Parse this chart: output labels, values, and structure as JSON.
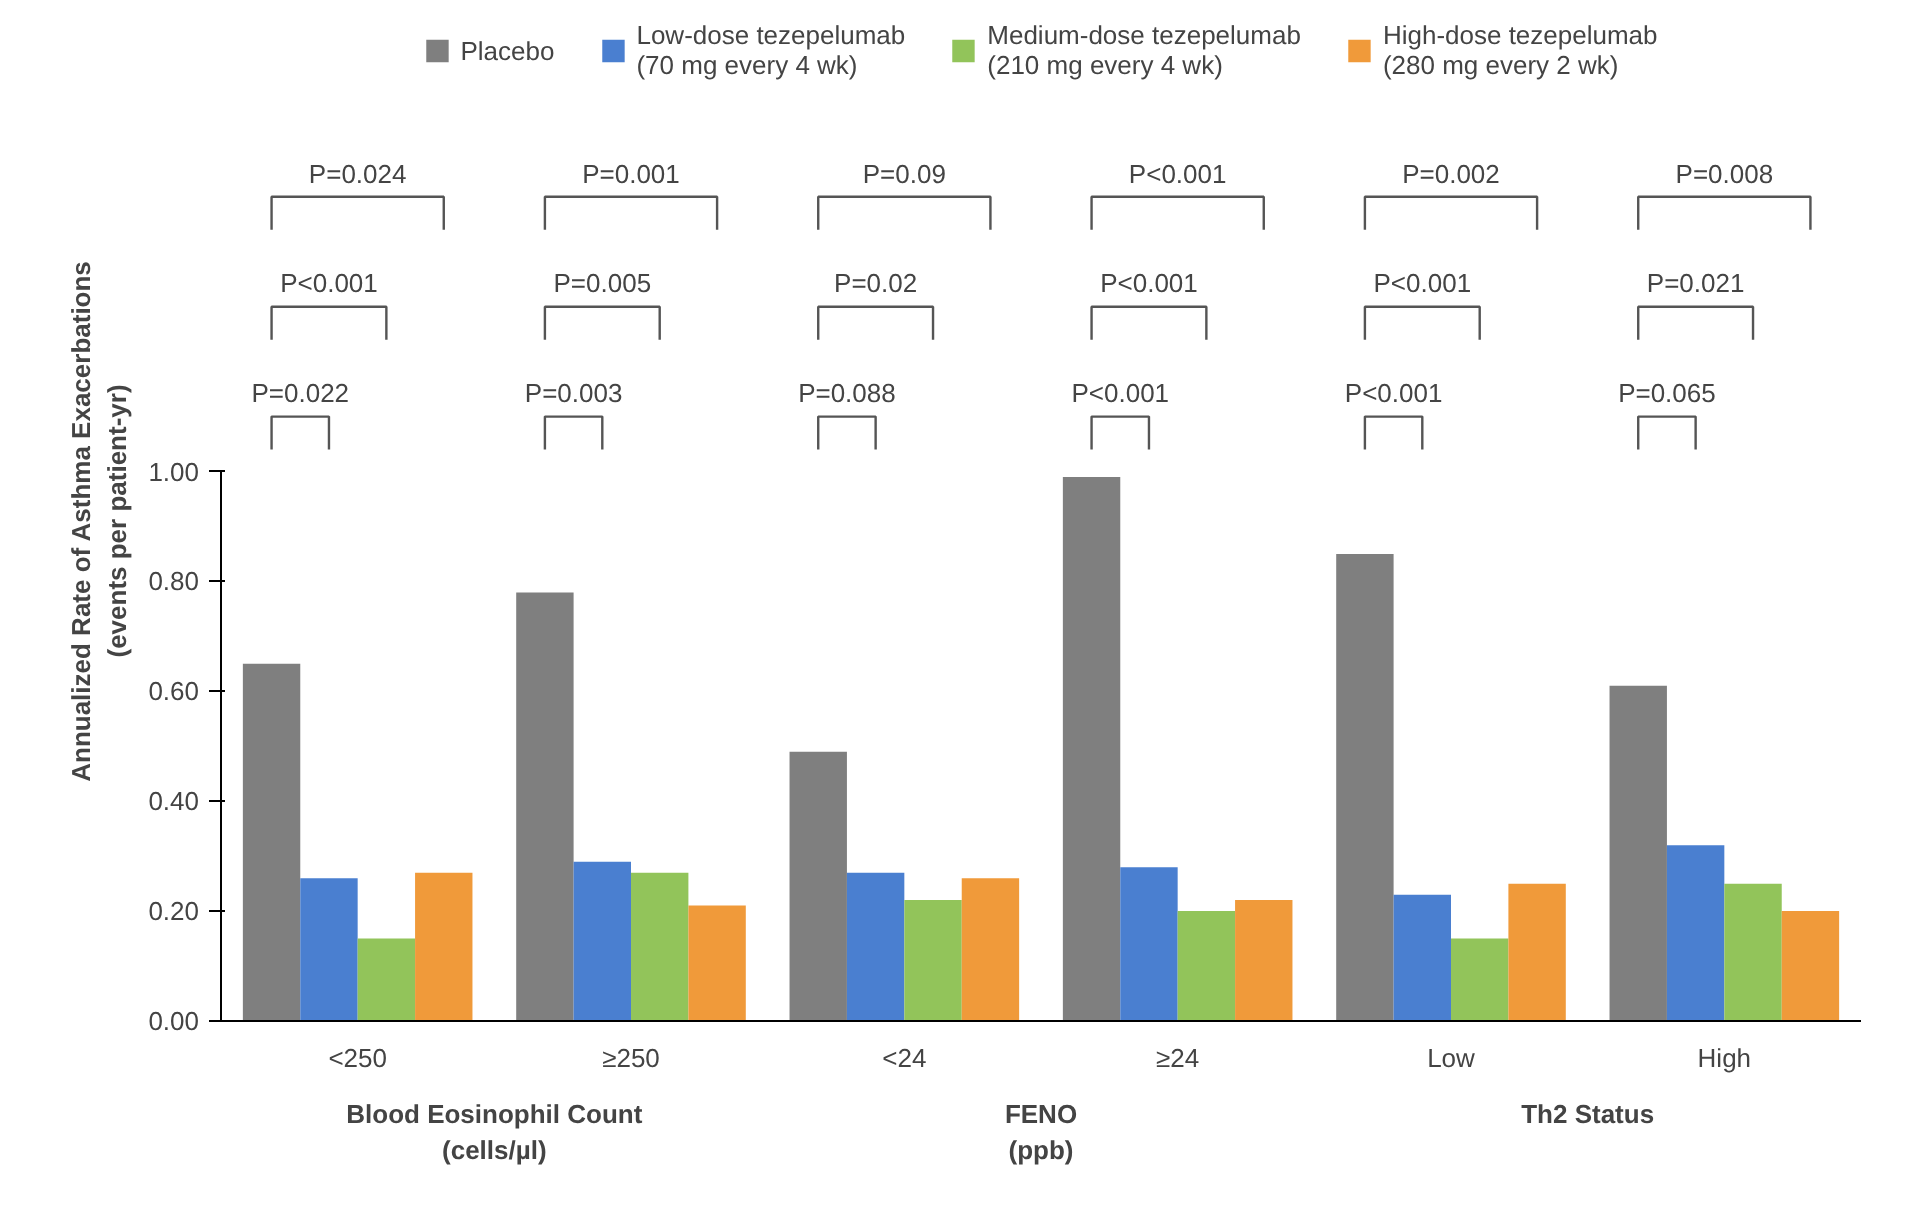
{
  "chart_data": {
    "type": "bar",
    "ylabel": "Annualized Rate of Asthma Exacerbations\n(events per patient-yr)",
    "categories": [
      "<250",
      "≥250",
      "<24",
      "≥24",
      "Low",
      "High"
    ],
    "series": [
      {
        "name": "Placebo",
        "color": "#7f7f7f",
        "values": [
          0.65,
          0.78,
          0.49,
          0.99,
          0.85,
          0.61
        ]
      },
      {
        "name": "Low-dose tezepelumab\n(70 mg every 4 wk)",
        "color": "#4a7fd0",
        "values": [
          0.26,
          0.29,
          0.27,
          0.28,
          0.23,
          0.32
        ]
      },
      {
        "name": "Medium-dose tezepelumab\n(210 mg every 4 wk)",
        "color": "#92c45a",
        "values": [
          0.15,
          0.27,
          0.22,
          0.2,
          0.15,
          0.25
        ]
      },
      {
        "name": "High-dose tezepelumab\n(280 mg every 2 wk)",
        "color": "#f09a3a",
        "values": [
          0.27,
          0.21,
          0.26,
          0.22,
          0.25,
          0.2
        ]
      }
    ],
    "ylim": [
      0,
      1
    ],
    "yticks": [
      {
        "value": 0,
        "label": "0.00"
      },
      {
        "value": 0.2,
        "label": "0.20"
      },
      {
        "value": 0.4,
        "label": "0.40"
      },
      {
        "value": 0.6,
        "label": "0.60"
      },
      {
        "value": 0.8,
        "label": "0.80"
      },
      {
        "value": 1,
        "label": "1.00"
      }
    ],
    "grid": false,
    "legend": "top",
    "annotations": [
      "P=0.022",
      "P<0.001",
      "P=0.024",
      "P=0.003",
      "P=0.005",
      "P=0.001",
      "P=0.088",
      "P=0.02",
      "P=0.09",
      "P<0.001",
      "P<0.001",
      "P<0.001",
      "P<0.001",
      "P<0.001",
      "P=0.002",
      "P=0.065",
      "P=0.021",
      "P=0.008",
      "Blood Eosinophil Count\n(cells/µl)",
      "FENO\n(ppb)",
      "Th2 Status"
    ]
  }
}
